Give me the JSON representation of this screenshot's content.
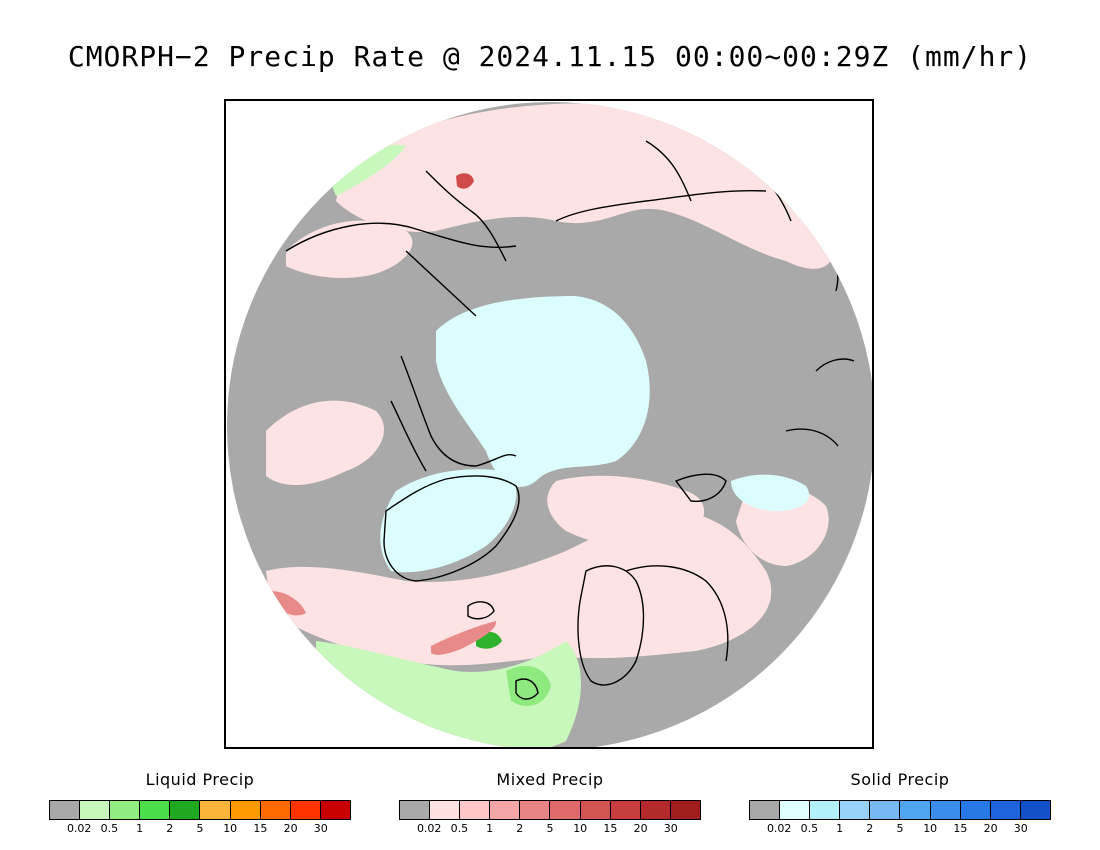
{
  "title": "CMORPH−2 Precip Rate @ 2024.11.15 00:00~00:29Z (mm/hr)",
  "map": {
    "projection": "north polar stereographic",
    "colors": {
      "no_precip": "#a9a9a9",
      "frame": "#000000",
      "coast": "#000000",
      "mixed_light": "#fde3e3",
      "solid_light": "#dcfdfd",
      "liquid_light": "#c8f8bc",
      "liquid_mid": "#8eea7e",
      "mixed_mid": "#e88a8a",
      "mixed_strong": "#d14a4a",
      "liquid_strong": "#2fb32f"
    }
  },
  "legends": [
    {
      "title": "Liquid Precip",
      "colors": [
        "#a9a9a9",
        "#c8f8bc",
        "#90ee80",
        "#4ade4a",
        "#20a820",
        "#fbb43a",
        "#ff9900",
        "#ff6a00",
        "#ff3300",
        "#c80000"
      ],
      "ticks": [
        "0.02",
        "0.5",
        "1",
        "2",
        "5",
        "10",
        "15",
        "20",
        "30"
      ]
    },
    {
      "title": "Mixed Precip",
      "colors": [
        "#a9a9a9",
        "#ffe0e0",
        "#ffc8c8",
        "#f4a6a6",
        "#e88484",
        "#de6a6a",
        "#d45454",
        "#c83e3e",
        "#b42a2a",
        "#a01e1e"
      ],
      "ticks": [
        "0.02",
        "0.5",
        "1",
        "2",
        "5",
        "10",
        "15",
        "20",
        "30"
      ]
    },
    {
      "title": "Solid Precip",
      "colors": [
        "#a9a9a9",
        "#e0ffff",
        "#b4f0fa",
        "#96d2fa",
        "#78b9f5",
        "#50a5f0",
        "#3c8ceb",
        "#2878e6",
        "#1e64dc",
        "#1450c8"
      ],
      "ticks": [
        "0.02",
        "0.5",
        "1",
        "2",
        "5",
        "10",
        "15",
        "20",
        "30"
      ]
    }
  ]
}
